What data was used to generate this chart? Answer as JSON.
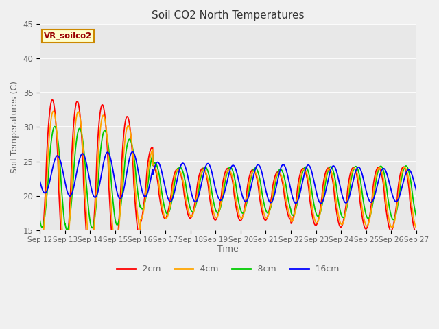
{
  "title": "Soil CO2 North Temperatures",
  "ylabel": "Soil Temperatures (C)",
  "xlabel": "Time",
  "ylim": [
    15,
    45
  ],
  "xtick_labels": [
    "Sep 12",
    "Sep 13",
    "Sep 14",
    "Sep 15",
    "Sep 16",
    "Sep 17",
    "Sep 18",
    "Sep 19",
    "Sep 20",
    "Sep 21",
    "Sep 22",
    "Sep 23",
    "Sep 24",
    "Sep 25",
    "Sep 26",
    "Sep 27"
  ],
  "ytick_labels": [
    15,
    20,
    25,
    30,
    35,
    40,
    45
  ],
  "colors": {
    "-2cm": "#ff0000",
    "-4cm": "#ffa500",
    "-8cm": "#00cc00",
    "-16cm": "#0000ff"
  },
  "legend_label": "VR_soilco2",
  "fig_background": "#f0f0f0",
  "plot_background": "#e8e8e8",
  "grid_color": "#ffffff",
  "legend_box_facecolor": "#ffffcc",
  "legend_box_edgecolor": "#cc8800",
  "legend_text_color": "#990000",
  "axis_label_color": "#666666",
  "title_color": "#333333"
}
